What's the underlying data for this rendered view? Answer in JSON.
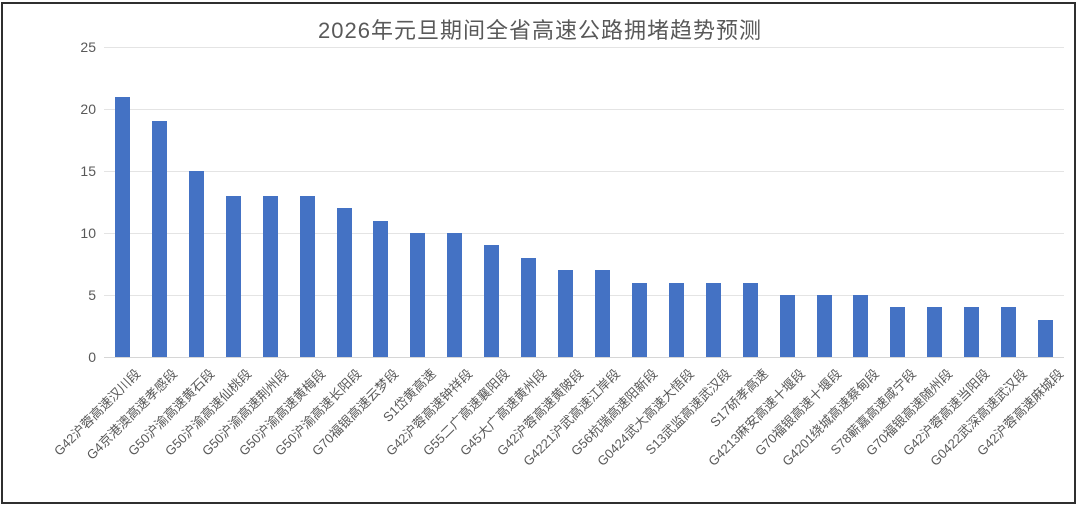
{
  "window": {
    "background": "#ffffff",
    "border_color": "#2f2f2f"
  },
  "chart_data": {
    "type": "bar",
    "title": "2026年元旦期间全省高速公路拥堵趋势预测",
    "categories": [
      "G42沪蓉高速汉川段",
      "G4京港澳高速孝感段",
      "G50沪渝高速黄石段",
      "G50沪渝高速仙桃段",
      "G50沪渝高速荆州段",
      "G50沪渝高速黄梅段",
      "G50沪渝高速长阳段",
      "G70福银高速云梦段",
      "S1岱黄高速",
      "G42沪蓉高速钟祥段",
      "G55二广高速襄阳段",
      "G45大广高速黄州段",
      "G42沪蓉高速黄陂段",
      "G4221沪武高速江岸段",
      "G56杭瑞高速阳新段",
      "G0424武大高速大悟段",
      "S13武监高速武汉段",
      "S17硚孝高速",
      "G4213麻安高速十堰段",
      "G70福银高速十堰段",
      "G4201绕城高速蔡甸段",
      "S78蕲嘉高速咸宁段",
      "G70福银高速随州段",
      "G42沪蓉高速当阳段",
      "G0422武深高速武汉段",
      "G42沪蓉高速麻城段"
    ],
    "values": [
      21,
      19,
      15,
      13,
      13,
      13,
      12,
      11,
      10,
      10,
      9,
      8,
      7,
      7,
      6,
      6,
      6,
      6,
      5,
      5,
      5,
      4,
      4,
      4,
      4,
      3
    ],
    "xlabel": "",
    "ylabel": "",
    "ylim": [
      0,
      25
    ],
    "yticks": [
      0,
      5,
      10,
      15,
      20,
      25
    ],
    "grid": "horizontal",
    "legend": "none",
    "bar_color": "#4472c4",
    "text_color": "#595959",
    "gridline_color": "#e4e4e4"
  }
}
